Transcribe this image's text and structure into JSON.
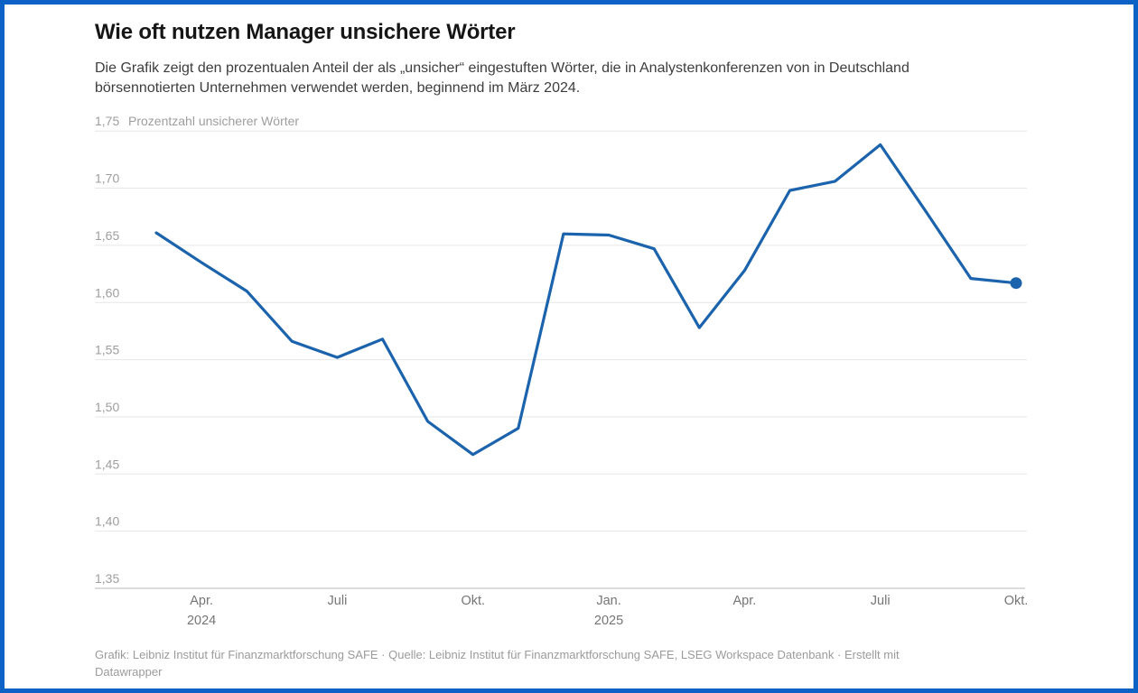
{
  "header": {
    "title": "Wie oft nutzen Manager unsichere Wörter",
    "subtitle_line1": "Die Grafik zeigt den prozentualen Anteil der als „unsicher“ eingestuften Wörter, die in Analystenkonferenzen von in Deutschland",
    "subtitle_line2": "börsennotierten Unternehmen verwendet werden, beginnend im März 2024."
  },
  "chart_data": {
    "type": "line",
    "title": "Wie oft nutzen Manager unsichere Wörter",
    "xlabel": "",
    "ylabel": "Prozentzahl unsicherer Wörter",
    "x": [
      "März 2024",
      "Apr. 2024",
      "Mai 2024",
      "Juni 2024",
      "Juli 2024",
      "Aug. 2024",
      "Sep. 2024",
      "Okt. 2024",
      "Nov. 2024",
      "Dez. 2024",
      "Jan. 2025",
      "Feb. 2025",
      "März 2025",
      "Apr. 2025",
      "Mai 2025",
      "Juni 2025",
      "Juli 2025",
      "Aug. 2025",
      "Sep. 2025",
      "Okt. 2025"
    ],
    "values": [
      1.661,
      1.635,
      1.61,
      1.566,
      1.552,
      1.568,
      1.496,
      1.467,
      1.49,
      1.66,
      1.659,
      1.647,
      1.578,
      1.628,
      1.698,
      1.706,
      1.738,
      1.68,
      1.621,
      1.617
    ],
    "ylim": [
      1.35,
      1.75
    ],
    "grid": "horizontal",
    "legend": "none",
    "end_dot_on_last_point": true,
    "yticks": [
      {
        "value": 1.35,
        "label": "1,35"
      },
      {
        "value": 1.4,
        "label": "1,40"
      },
      {
        "value": 1.45,
        "label": "1,45"
      },
      {
        "value": 1.5,
        "label": "1,50"
      },
      {
        "value": 1.55,
        "label": "1,55"
      },
      {
        "value": 1.6,
        "label": "1,60"
      },
      {
        "value": 1.65,
        "label": "1,65"
      },
      {
        "value": 1.7,
        "label": "1,70"
      },
      {
        "value": 1.75,
        "label": "1,75"
      }
    ],
    "xticks": [
      {
        "index": 1,
        "label": "Apr.",
        "year": "2024"
      },
      {
        "index": 4,
        "label": "Juli",
        "year": ""
      },
      {
        "index": 7,
        "label": "Okt.",
        "year": ""
      },
      {
        "index": 10,
        "label": "Jan.",
        "year": "2025"
      },
      {
        "index": 13,
        "label": "Apr.",
        "year": ""
      },
      {
        "index": 16,
        "label": "Juli",
        "year": ""
      },
      {
        "index": 19,
        "label": "Okt.",
        "year": ""
      }
    ]
  },
  "footer": {
    "line1": "Grafik: Leibniz Institut für Finanzmarktforschung SAFE · Quelle: Leibniz Institut für Finanzmarktforschung SAFE, LSEG Workspace Datenbank · Erstellt mit",
    "line2": "Datawrapper"
  },
  "colors": {
    "line": "#1b63ac",
    "end_dot": "#1b63ac",
    "frame_border": "#0d63c5",
    "gridline": "#e6e6e6",
    "baseline": "#b9b9b9",
    "y_label": "#9e9e9e",
    "x_label": "#757575",
    "title": "#161616",
    "subtitle": "#3d3d3d",
    "footer": "#9b9b9b",
    "background": "#ffffff"
  }
}
